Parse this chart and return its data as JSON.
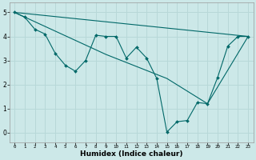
{
  "xlabel": "Humidex (Indice chaleur)",
  "ylabel": "",
  "bg_color": "#cce8e8",
  "grid_color": "#b8d8d8",
  "line_color": "#006868",
  "xlim": [
    -0.5,
    23.5
  ],
  "ylim": [
    -0.4,
    5.4
  ],
  "xticks": [
    0,
    1,
    2,
    3,
    4,
    5,
    6,
    7,
    8,
    9,
    10,
    11,
    12,
    13,
    14,
    15,
    16,
    17,
    18,
    19,
    20,
    21,
    22,
    23
  ],
  "yticks": [
    0,
    1,
    2,
    3,
    4,
    5
  ],
  "line1_x": [
    0,
    1,
    2,
    3,
    4,
    5,
    6,
    7,
    8,
    9,
    10,
    11,
    12,
    13,
    14,
    15,
    16,
    17,
    18,
    19,
    20,
    21,
    22,
    23
  ],
  "line1_y": [
    5.0,
    4.8,
    4.3,
    4.1,
    3.3,
    2.8,
    2.55,
    3.0,
    4.05,
    4.0,
    4.0,
    3.1,
    3.55,
    3.1,
    2.25,
    0.02,
    0.45,
    0.5,
    1.25,
    1.2,
    2.3,
    3.6,
    4.0,
    4.0
  ],
  "line2_x": [
    0,
    23
  ],
  "line2_y": [
    5.0,
    4.0
  ],
  "line3_x": [
    0,
    9,
    15,
    19,
    23
  ],
  "line3_y": [
    5.0,
    3.25,
    2.25,
    1.2,
    4.0
  ]
}
